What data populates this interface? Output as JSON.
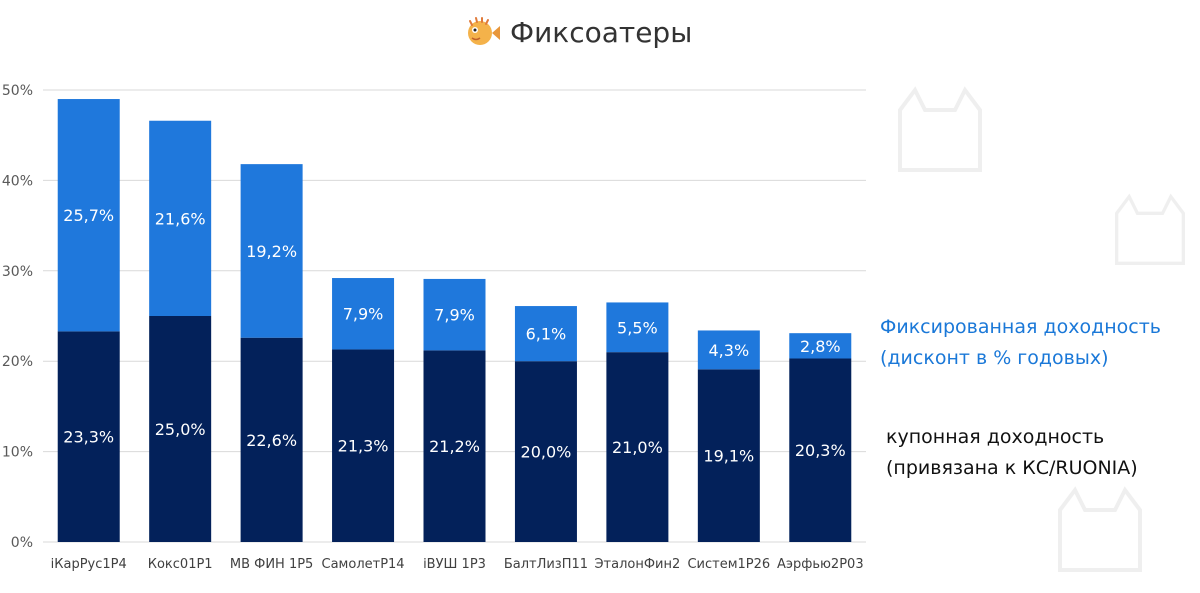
{
  "title": "Фиксоатеры",
  "icon": "pufferfish-icon",
  "colors": {
    "fixed": "#1f78dc",
    "coupon": "#03215a",
    "grid": "#d9d9d9"
  },
  "legend": {
    "fixed_line1": "Фиксированная доходность",
    "fixed_line2": "(дисконт в % годовых)",
    "coupon_line1": "купонная доходность",
    "coupon_line2": "(привязана к КС/RUONIA)"
  },
  "chart_data": {
    "type": "bar",
    "stacked": true,
    "categories": [
      "iКарРус1Р4",
      "Кокс01Р1",
      "МВ ФИН 1Р5",
      "СамолетР14",
      "iВУШ 1Р3",
      "БалтЛизП11",
      "ЭталонФин2",
      "Систем1Р26",
      "Аэрфью2Р03"
    ],
    "series": [
      {
        "key": "coupon",
        "values": [
          23.3,
          25.0,
          22.6,
          21.3,
          21.2,
          20.0,
          21.0,
          19.1,
          20.3
        ],
        "labels": [
          "23,3%",
          "25,0%",
          "22,6%",
          "21,3%",
          "21,2%",
          "20,0%",
          "21,0%",
          "19,1%",
          "20,3%"
        ]
      },
      {
        "key": "fixed",
        "values": [
          25.7,
          21.6,
          19.2,
          7.9,
          7.9,
          6.1,
          5.5,
          4.3,
          2.8
        ],
        "labels": [
          "25,7%",
          "21,6%",
          "19,2%",
          "7,9%",
          "7,9%",
          "6,1%",
          "5,5%",
          "4,3%",
          "2,8%"
        ]
      }
    ],
    "ylim": [
      0,
      50
    ],
    "yticks": [
      0,
      10,
      20,
      30,
      40,
      50
    ],
    "ytick_labels": [
      "0%",
      "10%",
      "20%",
      "30%",
      "40%",
      "50%"
    ],
    "grid": true,
    "legend_position": "right"
  }
}
